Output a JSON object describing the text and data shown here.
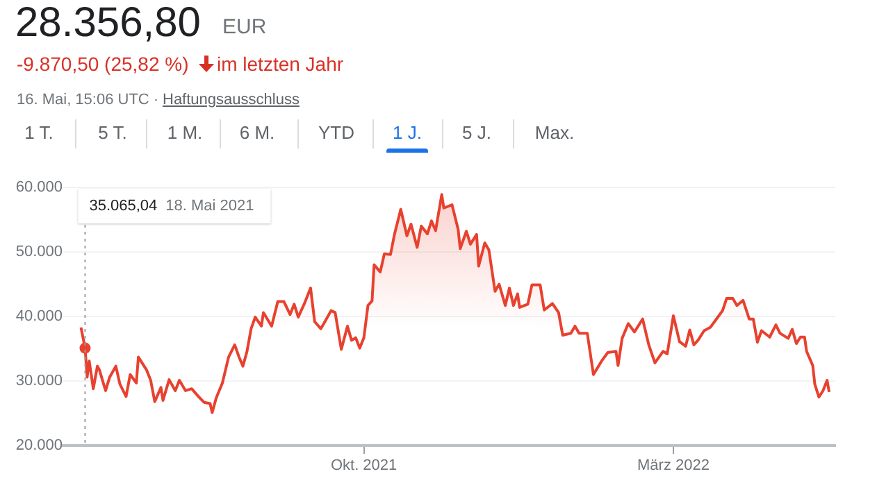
{
  "chart_data": {
    "type": "area",
    "title": "28.356,80",
    "annotations": [
      "35.065,04 18. Mai 2021",
      "EUR",
      "-9.870,50 (25,82 %)",
      "im letzten Jahr",
      "16. Mai, 15:06 UTC ·",
      "Haftungsausschluss",
      "1 T.",
      "5 T.",
      "1 M.",
      "6 M.",
      "YTD",
      "1 J.",
      "5 J.",
      "Max."
    ],
    "xlim": [
      "2021-05-07",
      "2022-05-19"
    ],
    "xticks": [
      {
        "value": "2021-10-01",
        "label": "Okt. 2021"
      },
      {
        "value": "2022-03-01",
        "label": "März 2022"
      }
    ],
    "ylim": [
      20000,
      60000
    ],
    "yticks": [
      {
        "value": 20000,
        "label": "20.000"
      },
      {
        "value": 30000,
        "label": "30.000"
      },
      {
        "value": 40000,
        "label": "40.000"
      },
      {
        "value": 50000,
        "label": "50.000"
      },
      {
        "value": 60000,
        "label": "60.000"
      }
    ],
    "ref_lines": [
      {
        "axis": "x",
        "value": "2021-05-18",
        "color": "#9aa0a6",
        "line_style": "dotted"
      }
    ],
    "grid": "y",
    "marker": "none",
    "line_style": "solid",
    "series": [
      {
        "color": "#e8412f",
        "x": [
          "2021-05-16",
          "2021-05-18",
          "2021-05-19",
          "2021-05-20",
          "2021-05-21",
          "2021-05-22",
          "2021-05-24",
          "2021-05-25",
          "2021-05-28",
          "2021-05-30",
          "2021-06-02",
          "2021-06-04",
          "2021-06-07",
          "2021-06-09",
          "2021-06-12",
          "2021-06-13",
          "2021-06-17",
          "2021-06-19",
          "2021-06-21",
          "2021-06-24",
          "2021-06-25",
          "2021-06-28",
          "2021-07-01",
          "2021-07-03",
          "2021-07-06",
          "2021-07-09",
          "2021-07-12",
          "2021-07-15",
          "2021-07-18",
          "2021-07-19",
          "2021-07-21",
          "2021-07-24",
          "2021-07-27",
          "2021-07-30",
          "2021-08-01",
          "2021-08-03",
          "2021-08-05",
          "2021-08-07",
          "2021-08-09",
          "2021-08-12",
          "2021-08-13",
          "2021-08-17",
          "2021-08-20",
          "2021-08-23",
          "2021-08-26",
          "2021-08-28",
          "2021-08-30",
          "2021-09-02",
          "2021-09-05",
          "2021-09-07",
          "2021-09-10",
          "2021-09-12",
          "2021-09-15",
          "2021-09-17",
          "2021-09-20",
          "2021-09-23",
          "2021-09-25",
          "2021-09-27",
          "2021-09-29",
          "2021-10-01",
          "2021-10-03",
          "2021-10-05",
          "2021-10-06",
          "2021-10-09",
          "2021-10-11",
          "2021-10-14",
          "2021-10-16",
          "2021-10-19",
          "2021-10-22",
          "2021-10-24",
          "2021-10-27",
          "2021-10-29",
          "2021-11-01",
          "2021-11-03",
          "2021-11-05",
          "2021-11-08",
          "2021-11-09",
          "2021-11-13",
          "2021-11-16",
          "2021-11-17",
          "2021-11-20",
          "2021-11-22",
          "2021-11-25",
          "2021-11-26",
          "2021-11-29",
          "2021-12-01",
          "2021-12-04",
          "2021-12-06",
          "2021-12-09",
          "2021-12-11",
          "2021-12-13",
          "2021-12-15",
          "2021-12-16",
          "2021-12-20",
          "2021-12-22",
          "2021-12-26",
          "2021-12-28",
          "2022-01-01",
          "2022-01-04",
          "2022-01-06",
          "2022-01-10",
          "2022-01-12",
          "2022-01-14",
          "2022-01-18",
          "2022-01-21",
          "2022-01-25",
          "2022-01-28",
          "2022-02-01",
          "2022-02-02",
          "2022-02-04",
          "2022-02-07",
          "2022-02-10",
          "2022-02-14",
          "2022-02-17",
          "2022-02-20",
          "2022-02-24",
          "2022-02-26",
          "2022-03-01",
          "2022-03-04",
          "2022-03-07",
          "2022-03-09",
          "2022-03-11",
          "2022-03-13",
          "2022-03-16",
          "2022-03-19",
          "2022-03-22",
          "2022-03-25",
          "2022-03-27",
          "2022-03-30",
          "2022-04-01",
          "2022-04-04",
          "2022-04-07",
          "2022-04-09",
          "2022-04-11",
          "2022-04-13",
          "2022-04-17",
          "2022-04-20",
          "2022-04-22",
          "2022-04-26",
          "2022-04-28",
          "2022-04-30",
          "2022-05-02",
          "2022-05-04",
          "2022-05-05",
          "2022-05-08",
          "2022-05-09",
          "2022-05-11",
          "2022-05-13",
          "2022-05-15",
          "2022-05-16"
        ],
        "values": [
          38300,
          35100,
          30600,
          33100,
          31000,
          28800,
          32300,
          31700,
          28500,
          30600,
          32300,
          29500,
          27600,
          31000,
          29700,
          33700,
          31700,
          30100,
          26800,
          29000,
          27000,
          30200,
          28500,
          30100,
          28500,
          28800,
          27700,
          26700,
          26500,
          25100,
          27400,
          29700,
          33700,
          35600,
          33800,
          32300,
          34600,
          38100,
          39900,
          38500,
          40600,
          38500,
          42300,
          42300,
          40300,
          41900,
          39900,
          42000,
          44400,
          39200,
          38100,
          39200,
          40900,
          40600,
          34900,
          38500,
          36300,
          36700,
          35100,
          36700,
          41700,
          42400,
          48000,
          46900,
          49700,
          49600,
          52800,
          56600,
          52500,
          54300,
          50700,
          54000,
          52800,
          54800,
          53300,
          58900,
          56800,
          57300,
          53500,
          50500,
          53200,
          51200,
          52700,
          47800,
          51400,
          50300,
          43900,
          45000,
          41700,
          44400,
          41700,
          43500,
          41400,
          41900,
          44900,
          44900,
          41000,
          42000,
          40600,
          37100,
          37400,
          38500,
          37400,
          37400,
          31000,
          33100,
          34400,
          34600,
          32400,
          36600,
          38900,
          37600,
          39600,
          35600,
          32800,
          34600,
          34200,
          40100,
          36100,
          35400,
          37900,
          35600,
          36300,
          37800,
          38300,
          39600,
          40900,
          42800,
          42800,
          41700,
          42500,
          39600,
          39600,
          36000,
          37800,
          36800,
          38700,
          37400,
          36600,
          38000,
          35800,
          36800,
          36800,
          34600,
          32400,
          29500,
          27500,
          28500,
          30100,
          28300
        ]
      }
    ]
  }
}
